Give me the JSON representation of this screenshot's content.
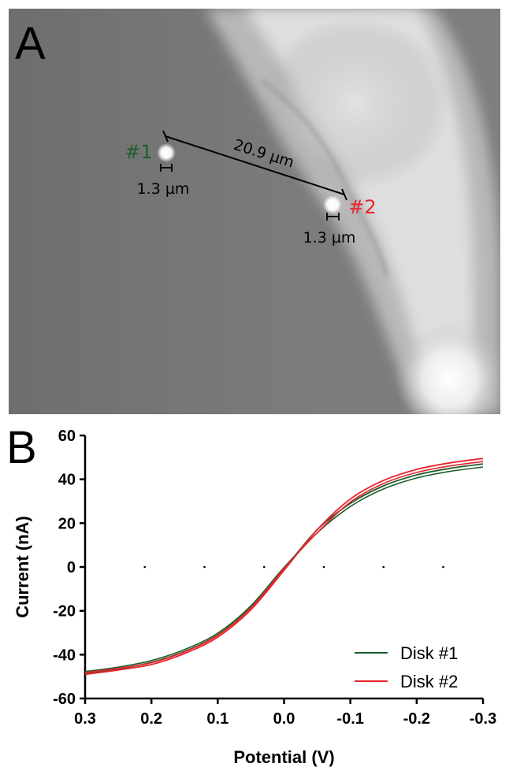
{
  "panel_a": {
    "letter": "A",
    "disks": [
      {
        "label": "#1",
        "color": "#1e5f2e",
        "diameter_label": "1.3 µm"
      },
      {
        "label": "#2",
        "color": "#e8242c",
        "diameter_label": "1.3 µm"
      }
    ],
    "distance_label": "20.9 µm"
  },
  "panel_b": {
    "letter": "B"
  },
  "chart_data": {
    "type": "line",
    "xlabel": "Potential (V)",
    "ylabel": "Current (nA)",
    "xlim": [
      0.3,
      -0.3
    ],
    "ylim": [
      -60,
      60
    ],
    "x_reversed": true,
    "xticks": [
      0.3,
      0.2,
      0.1,
      0.0,
      -0.1,
      -0.2,
      -0.3
    ],
    "xtick_labels": [
      "0.3",
      "0.2",
      "0.1",
      "0.0",
      "-0.1",
      "-0.2",
      "-0.3"
    ],
    "yticks": [
      -60,
      -40,
      -20,
      0,
      20,
      40,
      60
    ],
    "ytick_labels": [
      "-60",
      "-40",
      "-20",
      "0",
      "20",
      "40",
      "60"
    ],
    "grid": false,
    "legend_position": "bottom-right",
    "series": [
      {
        "name": "Disk #1",
        "color": "#1e5f2e",
        "x": [
          0.3,
          0.25,
          0.2,
          0.15,
          0.1,
          0.05,
          0.0,
          -0.05,
          -0.1,
          -0.15,
          -0.2,
          -0.25,
          -0.3
        ],
        "values": [
          -48.5,
          -46.5,
          -43.5,
          -38.5,
          -31,
          -18.5,
          -1,
          17,
          29,
          37,
          42,
          45,
          47
        ]
      },
      {
        "name": "Disk #2",
        "color": "#e8242c",
        "x": [
          0.3,
          0.25,
          0.2,
          0.15,
          0.1,
          0.05,
          0.0,
          -0.05,
          -0.1,
          -0.15,
          -0.2,
          -0.25,
          -0.3
        ],
        "values": [
          -49,
          -47,
          -44.5,
          -39.5,
          -32,
          -19.5,
          -1.5,
          17,
          31,
          39.5,
          44.5,
          47.5,
          49.5
        ]
      }
    ]
  }
}
